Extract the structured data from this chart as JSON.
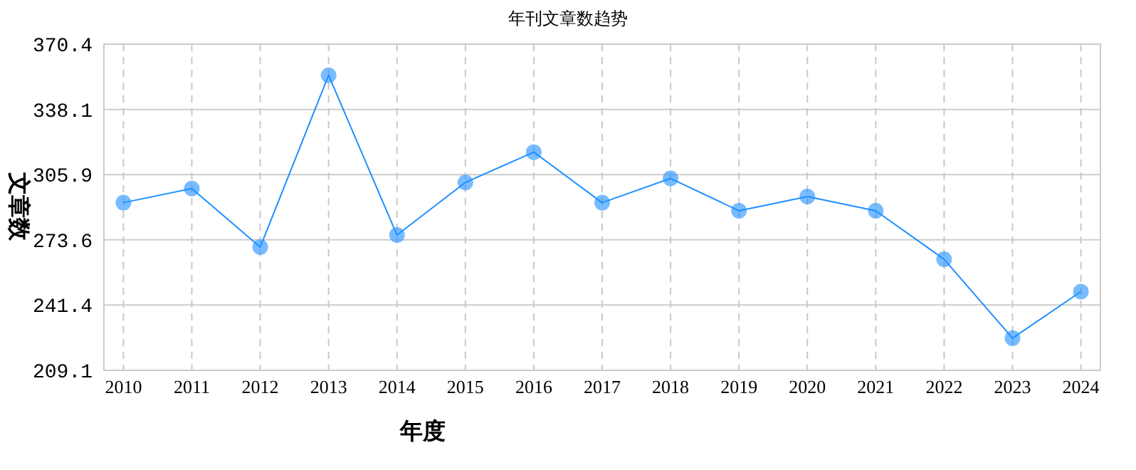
{
  "chart_data": {
    "type": "line",
    "title": "年刊文章数趋势",
    "xlabel": "年度",
    "ylabel": "文章数",
    "categories": [
      "2010",
      "2011",
      "2012",
      "2013",
      "2014",
      "2015",
      "2016",
      "2017",
      "2018",
      "2019",
      "2020",
      "2021",
      "2022",
      "2023",
      "2024"
    ],
    "series": [
      {
        "color": "#1e90ff",
        "values": [
          292,
          299,
          270,
          355,
          276,
          302,
          317,
          292,
          304,
          288,
          295,
          288,
          264,
          225,
          248
        ]
      }
    ],
    "ylim": [
      209.1,
      370.4
    ],
    "yticks": [
      209.1,
      241.4,
      273.6,
      305.9,
      338.1,
      370.4
    ],
    "grid": true,
    "marker": "circle",
    "line_style": "solid"
  }
}
